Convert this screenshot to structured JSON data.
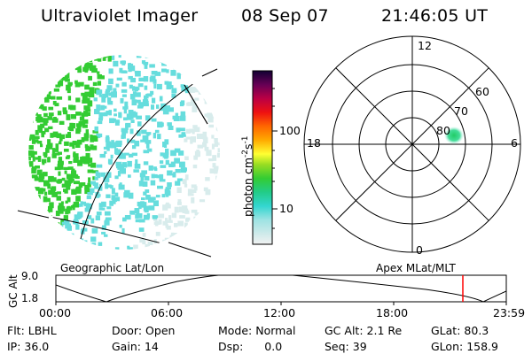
{
  "header": {
    "instrument": "Ultraviolet Imager",
    "date": "08 Sep 07",
    "time": "21:46:05 UT"
  },
  "colorbar": {
    "unit_label": "photon cm",
    "unit_exp1": "-2",
    "unit_mid": "s",
    "unit_exp2": "-1",
    "ticks": [
      "100",
      "10"
    ]
  },
  "polar_plot": {
    "mlt_labels": {
      "top": "12",
      "right": "6",
      "bottom": "0",
      "left": "18"
    },
    "lat_labels": [
      "60",
      "70",
      "80"
    ]
  },
  "map_labels": {
    "left": "Geographic Lat/Lon",
    "right": "Apex  MLat/MLT"
  },
  "altitude_strip": {
    "axis_label": "GC Alt",
    "y_ticks": [
      "9.0",
      "1.8"
    ],
    "x_ticks": [
      "00:00",
      "06:00",
      "12:00",
      "18:00",
      "23:59"
    ],
    "marker_color": "#ff0000"
  },
  "footer": {
    "row1": [
      {
        "key": "Flt:",
        "value": "LBHL"
      },
      {
        "key": "Door:",
        "value": "Open"
      },
      {
        "key": "Mode:",
        "value": "Normal"
      },
      {
        "key": "GC Alt:",
        "value": "2.1 Re"
      },
      {
        "key": "GLat:",
        "value": "80.3"
      }
    ],
    "row2": [
      {
        "key": "IP:",
        "value": "36.0"
      },
      {
        "key": "Gain:",
        "value": "14"
      },
      {
        "key": "Dsp:",
        "value": "0.0"
      },
      {
        "key": "Seq:",
        "value": "39"
      },
      {
        "key": "GLon:",
        "value": "158.9"
      }
    ]
  },
  "colors": {
    "aurora_green": "#33cc33",
    "aurora_cyan": "#66dddd",
    "aurora_pale": "#d8ecec"
  }
}
